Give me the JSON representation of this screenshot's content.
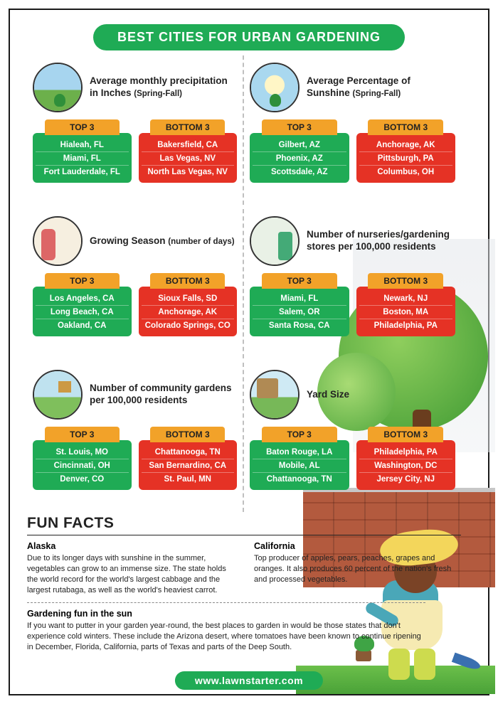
{
  "title": "BEST CITIES FOR URBAN GARDENING",
  "footer": "www.lawnstarter.com",
  "labels": {
    "top": "TOP 3",
    "bottom": "BOTTOM 3"
  },
  "colors": {
    "green": "#1fab55",
    "red": "#e53225",
    "orange": "#f2a229",
    "text": "#222222",
    "border": "#1a1a1a"
  },
  "cards": [
    {
      "title": "Average monthly precipitation in Inches",
      "subtitle": "(Spring-Fall)",
      "icon": "precip",
      "top": [
        "Hialeah, FL",
        "Miami, FL",
        "Fort Lauderdale, FL"
      ],
      "bottom": [
        "Bakersfield, CA",
        "Las Vegas, NV",
        "North Las Vegas, NV"
      ]
    },
    {
      "title": "Average Percentage of Sunshine",
      "subtitle": "(Spring-Fall)",
      "icon": "sunshine",
      "top": [
        "Gilbert, AZ",
        "Phoenix, AZ",
        "Scottsdale, AZ"
      ],
      "bottom": [
        "Anchorage, AK",
        "Pittsburgh, PA",
        "Columbus, OH"
      ]
    },
    {
      "title": "Growing Season",
      "subtitle": "(number of days)",
      "icon": "growing",
      "top": [
        "Los Angeles, CA",
        "Long Beach, CA",
        "Oakland, CA"
      ],
      "bottom": [
        "Sioux Falls, SD",
        "Anchorage, AK",
        "Colorado Springs, CO"
      ]
    },
    {
      "title": "Number of nurseries/gardening stores per 100,000 residents",
      "subtitle": "",
      "icon": "stores",
      "top": [
        "Miami, FL",
        "Salem, OR",
        "Santa Rosa, CA"
      ],
      "bottom": [
        "Newark, NJ",
        "Boston, MA",
        "Philadelphia, PA"
      ]
    },
    {
      "title": "Number of community gardens per 100,000 residents",
      "subtitle": "",
      "icon": "community",
      "top": [
        "St. Louis, MO",
        "Cincinnati, OH",
        "Denver, CO"
      ],
      "bottom": [
        "Chattanooga, TN",
        "San Bernardino, CA",
        "St. Paul, MN"
      ]
    },
    {
      "title": "Yard Size",
      "subtitle": "",
      "icon": "yard",
      "top": [
        "Baton Rouge, LA",
        "Mobile, AL",
        "Chattanooga, TN"
      ],
      "bottom": [
        "Philadelphia, PA",
        "Washington, DC",
        "Jersey City, NJ"
      ]
    }
  ],
  "fun": {
    "heading": "FUN FACTS",
    "facts": [
      {
        "title": "Alaska",
        "body": "Due to its longer days with sunshine in the summer, vegetables can grow to an immense size. The state holds the world record for the world's largest cabbage and the largest rutabaga, as well as the world's heaviest carrot."
      },
      {
        "title": "California",
        "body": "Top producer of apples, pears, peaches, grapes and oranges. It also produces 60 percent of the nation's fresh and processed vegetables."
      }
    ],
    "fact2": {
      "title": "Gardening fun in the sun",
      "body": "If you want to putter in your garden year-round, the best places to garden in would be those states that don't experience cold winters. These include the Arizona desert, where tomatoes have been known to continue ripening in December, Florida, California, parts of Texas and parts of the Deep South."
    }
  }
}
